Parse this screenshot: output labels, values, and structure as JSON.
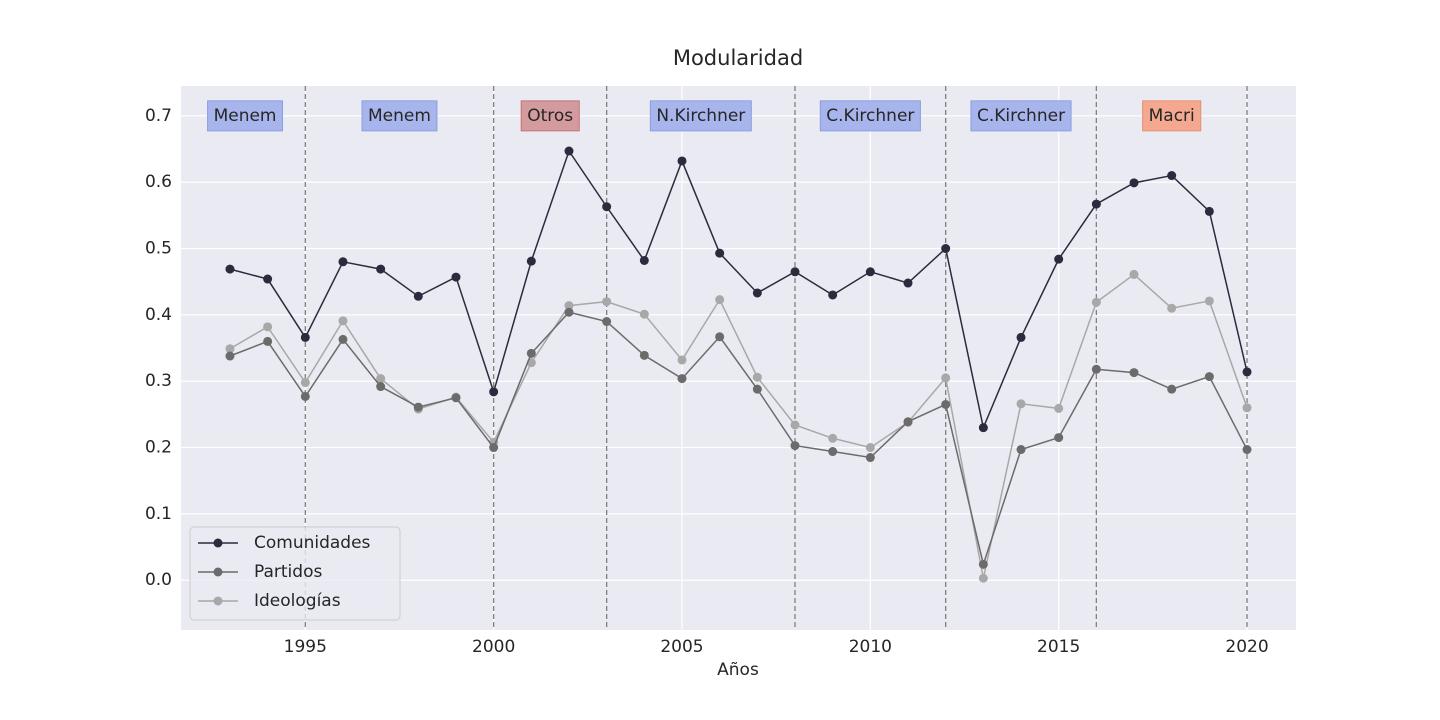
{
  "chart_data": {
    "type": "line",
    "title": "Modularidad",
    "xlabel": "Años",
    "ylabel": "",
    "xlim": [
      1991.7,
      2021.3
    ],
    "ylim": [
      -0.075,
      0.745
    ],
    "xticks": [
      1995,
      2000,
      2005,
      2010,
      2015,
      2020
    ],
    "yticks": [
      0.0,
      0.1,
      0.2,
      0.3,
      0.4,
      0.5,
      0.6,
      0.7
    ],
    "ytick_labels": [
      "0.0",
      "0.1",
      "0.2",
      "0.3",
      "0.4",
      "0.5",
      "0.6",
      "0.7"
    ],
    "grid": true,
    "legend_position": "lower-left",
    "x": [
      1993,
      1994,
      1995,
      1996,
      1997,
      1998,
      1999,
      2000,
      2001,
      2002,
      2003,
      2004,
      2005,
      2006,
      2007,
      2008,
      2009,
      2010,
      2011,
      2012,
      2013,
      2014,
      2015,
      2016,
      2017,
      2018,
      2019,
      2020
    ],
    "series": [
      {
        "name": "Comunidades",
        "color": "#2a2b3d",
        "values": [
          0.469,
          0.454,
          0.366,
          0.48,
          0.469,
          0.428,
          0.457,
          0.284,
          0.481,
          0.647,
          0.563,
          0.482,
          0.632,
          0.493,
          0.433,
          0.465,
          0.43,
          0.465,
          0.448,
          0.5,
          0.23,
          0.366,
          0.484,
          0.567,
          0.599,
          0.61,
          0.556,
          0.314
        ]
      },
      {
        "name": "Partidos",
        "color": "#6b6b6b",
        "values": [
          0.338,
          0.36,
          0.277,
          0.363,
          0.292,
          0.261,
          0.275,
          0.2,
          0.342,
          0.404,
          0.39,
          0.339,
          0.304,
          0.367,
          0.288,
          0.203,
          0.194,
          0.185,
          0.239,
          0.265,
          0.024,
          0.197,
          0.215,
          0.318,
          0.313,
          0.288,
          0.307,
          0.197
        ]
      },
      {
        "name": "Ideologías",
        "color": "#a8a8a8",
        "values": [
          0.349,
          0.382,
          0.298,
          0.391,
          0.304,
          0.258,
          0.276,
          0.208,
          0.328,
          0.414,
          0.42,
          0.401,
          0.332,
          0.423,
          0.306,
          0.234,
          0.214,
          0.2,
          0.238,
          0.305,
          0.003,
          0.266,
          0.259,
          0.419,
          0.461,
          0.41,
          0.421,
          0.26
        ]
      }
    ],
    "period_boundaries": [
      1995,
      2000,
      2003,
      2008,
      2012,
      2016,
      2020
    ],
    "periods": [
      {
        "label": "Menem",
        "center": 1993.4,
        "color": "#a7b5ec",
        "border": "#8a9ee0"
      },
      {
        "label": "Menem",
        "center": 1997.5,
        "color": "#a7b5ec",
        "border": "#8a9ee0"
      },
      {
        "label": "Otros",
        "center": 2001.5,
        "color": "#d49b9f",
        "border": "#c47378"
      },
      {
        "label": "N.Kirchner",
        "center": 2005.5,
        "color": "#a7b5ec",
        "border": "#8a9ee0"
      },
      {
        "label": "C.Kirchner",
        "center": 2010.0,
        "color": "#a7b5ec",
        "border": "#8a9ee0"
      },
      {
        "label": "C.Kirchner",
        "center": 2014.0,
        "color": "#a7b5ec",
        "border": "#8a9ee0"
      },
      {
        "label": "Macri",
        "center": 2018.0,
        "color": "#f4a88f",
        "border": "#e88f72"
      }
    ],
    "period_label_y": 0.7
  }
}
